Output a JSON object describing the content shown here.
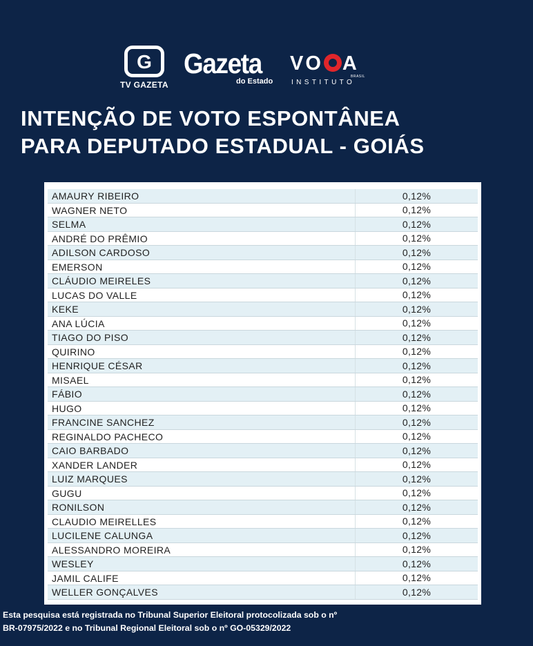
{
  "logos": {
    "tv_gazeta": {
      "letter": "G",
      "caption": "TV GAZETA"
    },
    "gazeta_estado": {
      "name": "Gazeta",
      "sub": "do Estado"
    },
    "voga": {
      "left": "VO",
      "right": "A",
      "brasil": "BRASIL",
      "sub": "INSTITUTO"
    }
  },
  "title": {
    "line1": "INTENÇÃO DE VOTO ESPONTÂNEA",
    "line2": "PARA DEPUTADO ESTADUAL - GOIÁS"
  },
  "table": {
    "rows": [
      {
        "name": "AMAURY RIBEIRO",
        "pct": "0,12%"
      },
      {
        "name": "WAGNER NETO",
        "pct": "0,12%"
      },
      {
        "name": "SELMA",
        "pct": "0,12%"
      },
      {
        "name": "ANDRÉ DO PRÊMIO",
        "pct": "0,12%"
      },
      {
        "name": "ADILSON CARDOSO",
        "pct": "0,12%"
      },
      {
        "name": "EMERSON",
        "pct": "0,12%"
      },
      {
        "name": "CLÁUDIO MEIRELES",
        "pct": "0,12%"
      },
      {
        "name": "LUCAS DO VALLE",
        "pct": "0,12%"
      },
      {
        "name": "KEKE",
        "pct": "0,12%"
      },
      {
        "name": "ANA LÚCIA",
        "pct": "0,12%"
      },
      {
        "name": "TIAGO DO PISO",
        "pct": "0,12%"
      },
      {
        "name": "QUIRINO",
        "pct": "0,12%"
      },
      {
        "name": "HENRIQUE CÉSAR",
        "pct": "0,12%"
      },
      {
        "name": "MISAEL",
        "pct": "0,12%"
      },
      {
        "name": "FÁBIO",
        "pct": "0,12%"
      },
      {
        "name": "HUGO",
        "pct": "0,12%"
      },
      {
        "name": "FRANCINE SANCHEZ",
        "pct": "0,12%"
      },
      {
        "name": "REGINALDO PACHECO",
        "pct": "0,12%"
      },
      {
        "name": "CAIO BARBADO",
        "pct": "0,12%"
      },
      {
        "name": "XANDER LANDER",
        "pct": "0,12%"
      },
      {
        "name": "LUIZ MARQUES",
        "pct": "0,12%"
      },
      {
        "name": "GUGU",
        "pct": "0,12%"
      },
      {
        "name": "RONILSON",
        "pct": "0,12%"
      },
      {
        "name": "CLAUDIO MEIRELLES",
        "pct": "0,12%"
      },
      {
        "name": "LUCILENE CALUNGA",
        "pct": "0,12%"
      },
      {
        "name": "ALESSANDRO MOREIRA",
        "pct": "0,12%"
      },
      {
        "name": "WESLEY",
        "pct": "0,12%"
      },
      {
        "name": "JAMIL CALIFE",
        "pct": "0,12%"
      },
      {
        "name": "WELLER GONÇALVES",
        "pct": "0,12%"
      }
    ]
  },
  "footer": {
    "line1": "Esta pesquisa está registrada no Tribunal Superior Eleitoral protocolizada sob o nº",
    "line2": "BR-07975/2022 e no Tribunal Regional Eleitoral sob o nº GO-05329/2022"
  },
  "colors": {
    "background": "#0d2447",
    "row_alt": "#e3f0f5",
    "voga_red": "#e0262b"
  }
}
